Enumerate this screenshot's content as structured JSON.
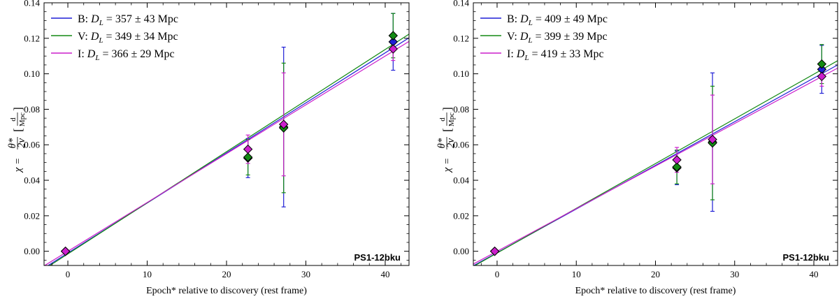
{
  "colors": {
    "B": "#1f1fd6",
    "V": "#138a13",
    "I": "#cc1fcc"
  },
  "chart_data": [
    {
      "type": "scatter",
      "panel": "left",
      "xlabel": "Epoch* relative to discovery (rest frame)",
      "ylabel": "χ = θ*/2v [d/Mpc]",
      "ylabel_parts": {
        "chi": "χ =",
        "frac_num": "θ*",
        "frac_den": "2v",
        "unit_num": "d",
        "unit_den": "Mpc"
      },
      "xlim": [
        -3,
        43
      ],
      "ylim": [
        -0.008,
        0.14
      ],
      "xticks": [
        0,
        10,
        20,
        30,
        40
      ],
      "xtick_labels": [
        "0",
        "10",
        "20",
        "30",
        "40"
      ],
      "yticks": [
        0.0,
        0.02,
        0.04,
        0.06,
        0.08,
        0.1,
        0.12,
        0.14
      ],
      "ytick_labels": [
        "0.00",
        "0.02",
        "0.04",
        "0.06",
        "0.08",
        "0.10",
        "0.12",
        "0.14"
      ],
      "annotation": "PS1-12bku",
      "legend_position": "top-left",
      "series": [
        {
          "name": "B",
          "legend": "B: D_L = 357 ± 43 Mpc",
          "legend_prefix": "B: ",
          "legend_sym": "D",
          "legend_sub": "L",
          "legend_suffix": " = 357 ± 43 Mpc",
          "x": [
            -0.3,
            22.7,
            27.2,
            41.0
          ],
          "y": [
            0.0,
            0.0525,
            0.07,
            0.118
          ],
          "yerr": [
            0.0,
            0.011,
            0.045,
            0.016
          ],
          "fit_slope": 0.00282,
          "fit_intercept": -0.001
        },
        {
          "name": "V",
          "legend": "V: D_L = 349 ± 34 Mpc",
          "legend_prefix": "V: ",
          "legend_sym": "D",
          "legend_sub": "L",
          "legend_suffix": " = 349 ± 34 Mpc",
          "x": [
            -0.3,
            22.7,
            27.2,
            41.0
          ],
          "y": [
            0.0,
            0.053,
            0.0695,
            0.1215
          ],
          "yerr": [
            0.0,
            0.01,
            0.0365,
            0.0125
          ],
          "fit_slope": 0.00288,
          "fit_intercept": -0.0015
        },
        {
          "name": "I",
          "legend": "I: D_L = 366 ± 29 Mpc",
          "legend_prefix": "I: ",
          "legend_sym": "D",
          "legend_sub": "L",
          "legend_suffix": " = 366 ± 29 Mpc",
          "x": [
            -0.3,
            22.7,
            27.2,
            41.0
          ],
          "y": [
            0.0,
            0.0575,
            0.0715,
            0.114
          ],
          "yerr": [
            0.0,
            0.008,
            0.029,
            0.0065
          ],
          "fit_slope": 0.00275,
          "fit_intercept": 0.0
        }
      ]
    },
    {
      "type": "scatter",
      "panel": "right",
      "xlabel": "Epoch* relative to discovery (rest frame)",
      "ylabel": "χ = θ*/2v [d/Mpc]",
      "ylabel_parts": {
        "chi": "χ =",
        "frac_num": "θ*",
        "frac_den": "2v",
        "unit_num": "d",
        "unit_den": "Mpc"
      },
      "xlim": [
        -3,
        43
      ],
      "ylim": [
        -0.008,
        0.14
      ],
      "xticks": [
        0,
        10,
        20,
        30,
        40
      ],
      "xtick_labels": [
        "0",
        "10",
        "20",
        "30",
        "40"
      ],
      "yticks": [
        0.0,
        0.02,
        0.04,
        0.06,
        0.08,
        0.1,
        0.12,
        0.14
      ],
      "ytick_labels": [
        "0.00",
        "0.02",
        "0.04",
        "0.06",
        "0.08",
        "0.10",
        "0.12",
        "0.14"
      ],
      "annotation": "PS1-12bku",
      "legend_position": "top-left",
      "series": [
        {
          "name": "B",
          "legend": "B: D_L = 409 ± 49 Mpc",
          "legend_prefix": "B: ",
          "legend_sym": "D",
          "legend_sub": "L",
          "legend_suffix": " = 409 ± 49 Mpc",
          "x": [
            -0.3,
            22.7,
            27.2,
            41.0
          ],
          "y": [
            0.0,
            0.047,
            0.0615,
            0.1025
          ],
          "yerr": [
            0.0,
            0.0095,
            0.039,
            0.0135
          ],
          "fit_slope": 0.00246,
          "fit_intercept": -0.0008
        },
        {
          "name": "V",
          "legend": "V: D_L = 399 ± 39 Mpc",
          "legend_prefix": "V: ",
          "legend_sym": "D",
          "legend_sub": "L",
          "legend_suffix": " = 399 ± 39 Mpc",
          "x": [
            -0.3,
            22.7,
            27.2,
            41.0
          ],
          "y": [
            0.0,
            0.0475,
            0.061,
            0.1055
          ],
          "yerr": [
            0.0,
            0.0095,
            0.032,
            0.011
          ],
          "fit_slope": 0.00252,
          "fit_intercept": -0.001
        },
        {
          "name": "I",
          "legend": "I: D_L = 419 ± 33 Mpc",
          "legend_prefix": "I: ",
          "legend_sym": "D",
          "legend_sub": "L",
          "legend_suffix": " = 419 ± 33 Mpc",
          "x": [
            -0.3,
            22.7,
            27.2,
            41.0
          ],
          "y": [
            0.0,
            0.0515,
            0.063,
            0.0985
          ],
          "yerr": [
            0.0,
            0.007,
            0.025,
            0.0055
          ],
          "fit_slope": 0.0024,
          "fit_intercept": 0.0
        }
      ]
    }
  ]
}
